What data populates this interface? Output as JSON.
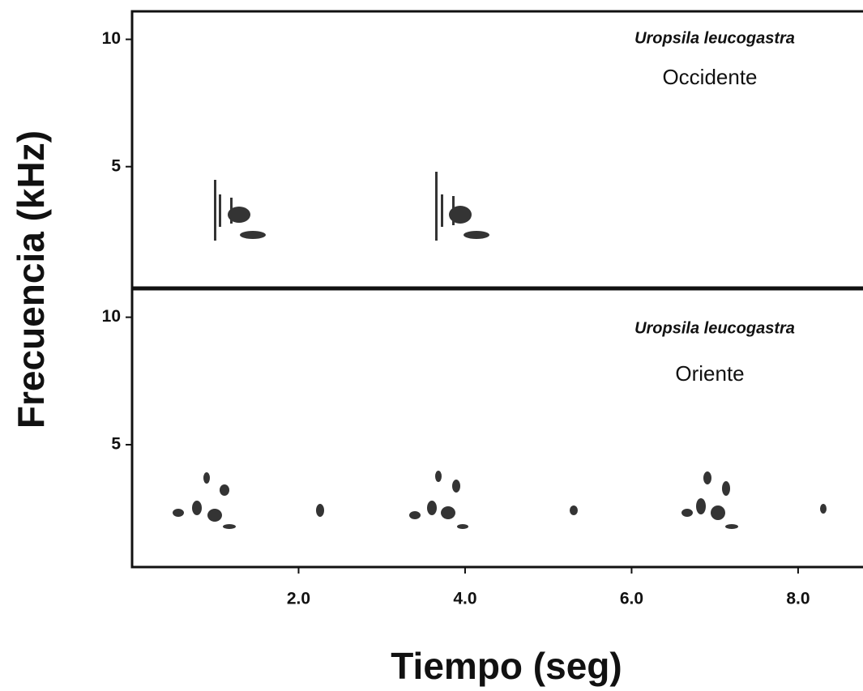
{
  "chart_data": [
    {
      "type": "spectrogram",
      "species": "Uropsila leucogastra",
      "title": "Occidente",
      "ylabel": "Frecuencia (kHz)",
      "ylim": [
        0.25,
        11.1
      ],
      "yticks": [
        5,
        10
      ],
      "xlim": [
        0,
        8.76
      ]
    },
    {
      "type": "spectrogram",
      "species": "Uropsila leucogastra",
      "title": "Oriente",
      "xlabel": "Tiempo (seg)",
      "ylim": [
        0.2,
        11.1
      ],
      "yticks": [
        5,
        10
      ],
      "xlim": [
        0,
        8.76
      ],
      "xticks": [
        {
          "value": 2,
          "label": "2.0"
        },
        {
          "value": 4,
          "label": "4.0"
        },
        {
          "value": 6,
          "label": "6.0"
        },
        {
          "value": 8,
          "label": "8.0"
        }
      ]
    }
  ]
}
